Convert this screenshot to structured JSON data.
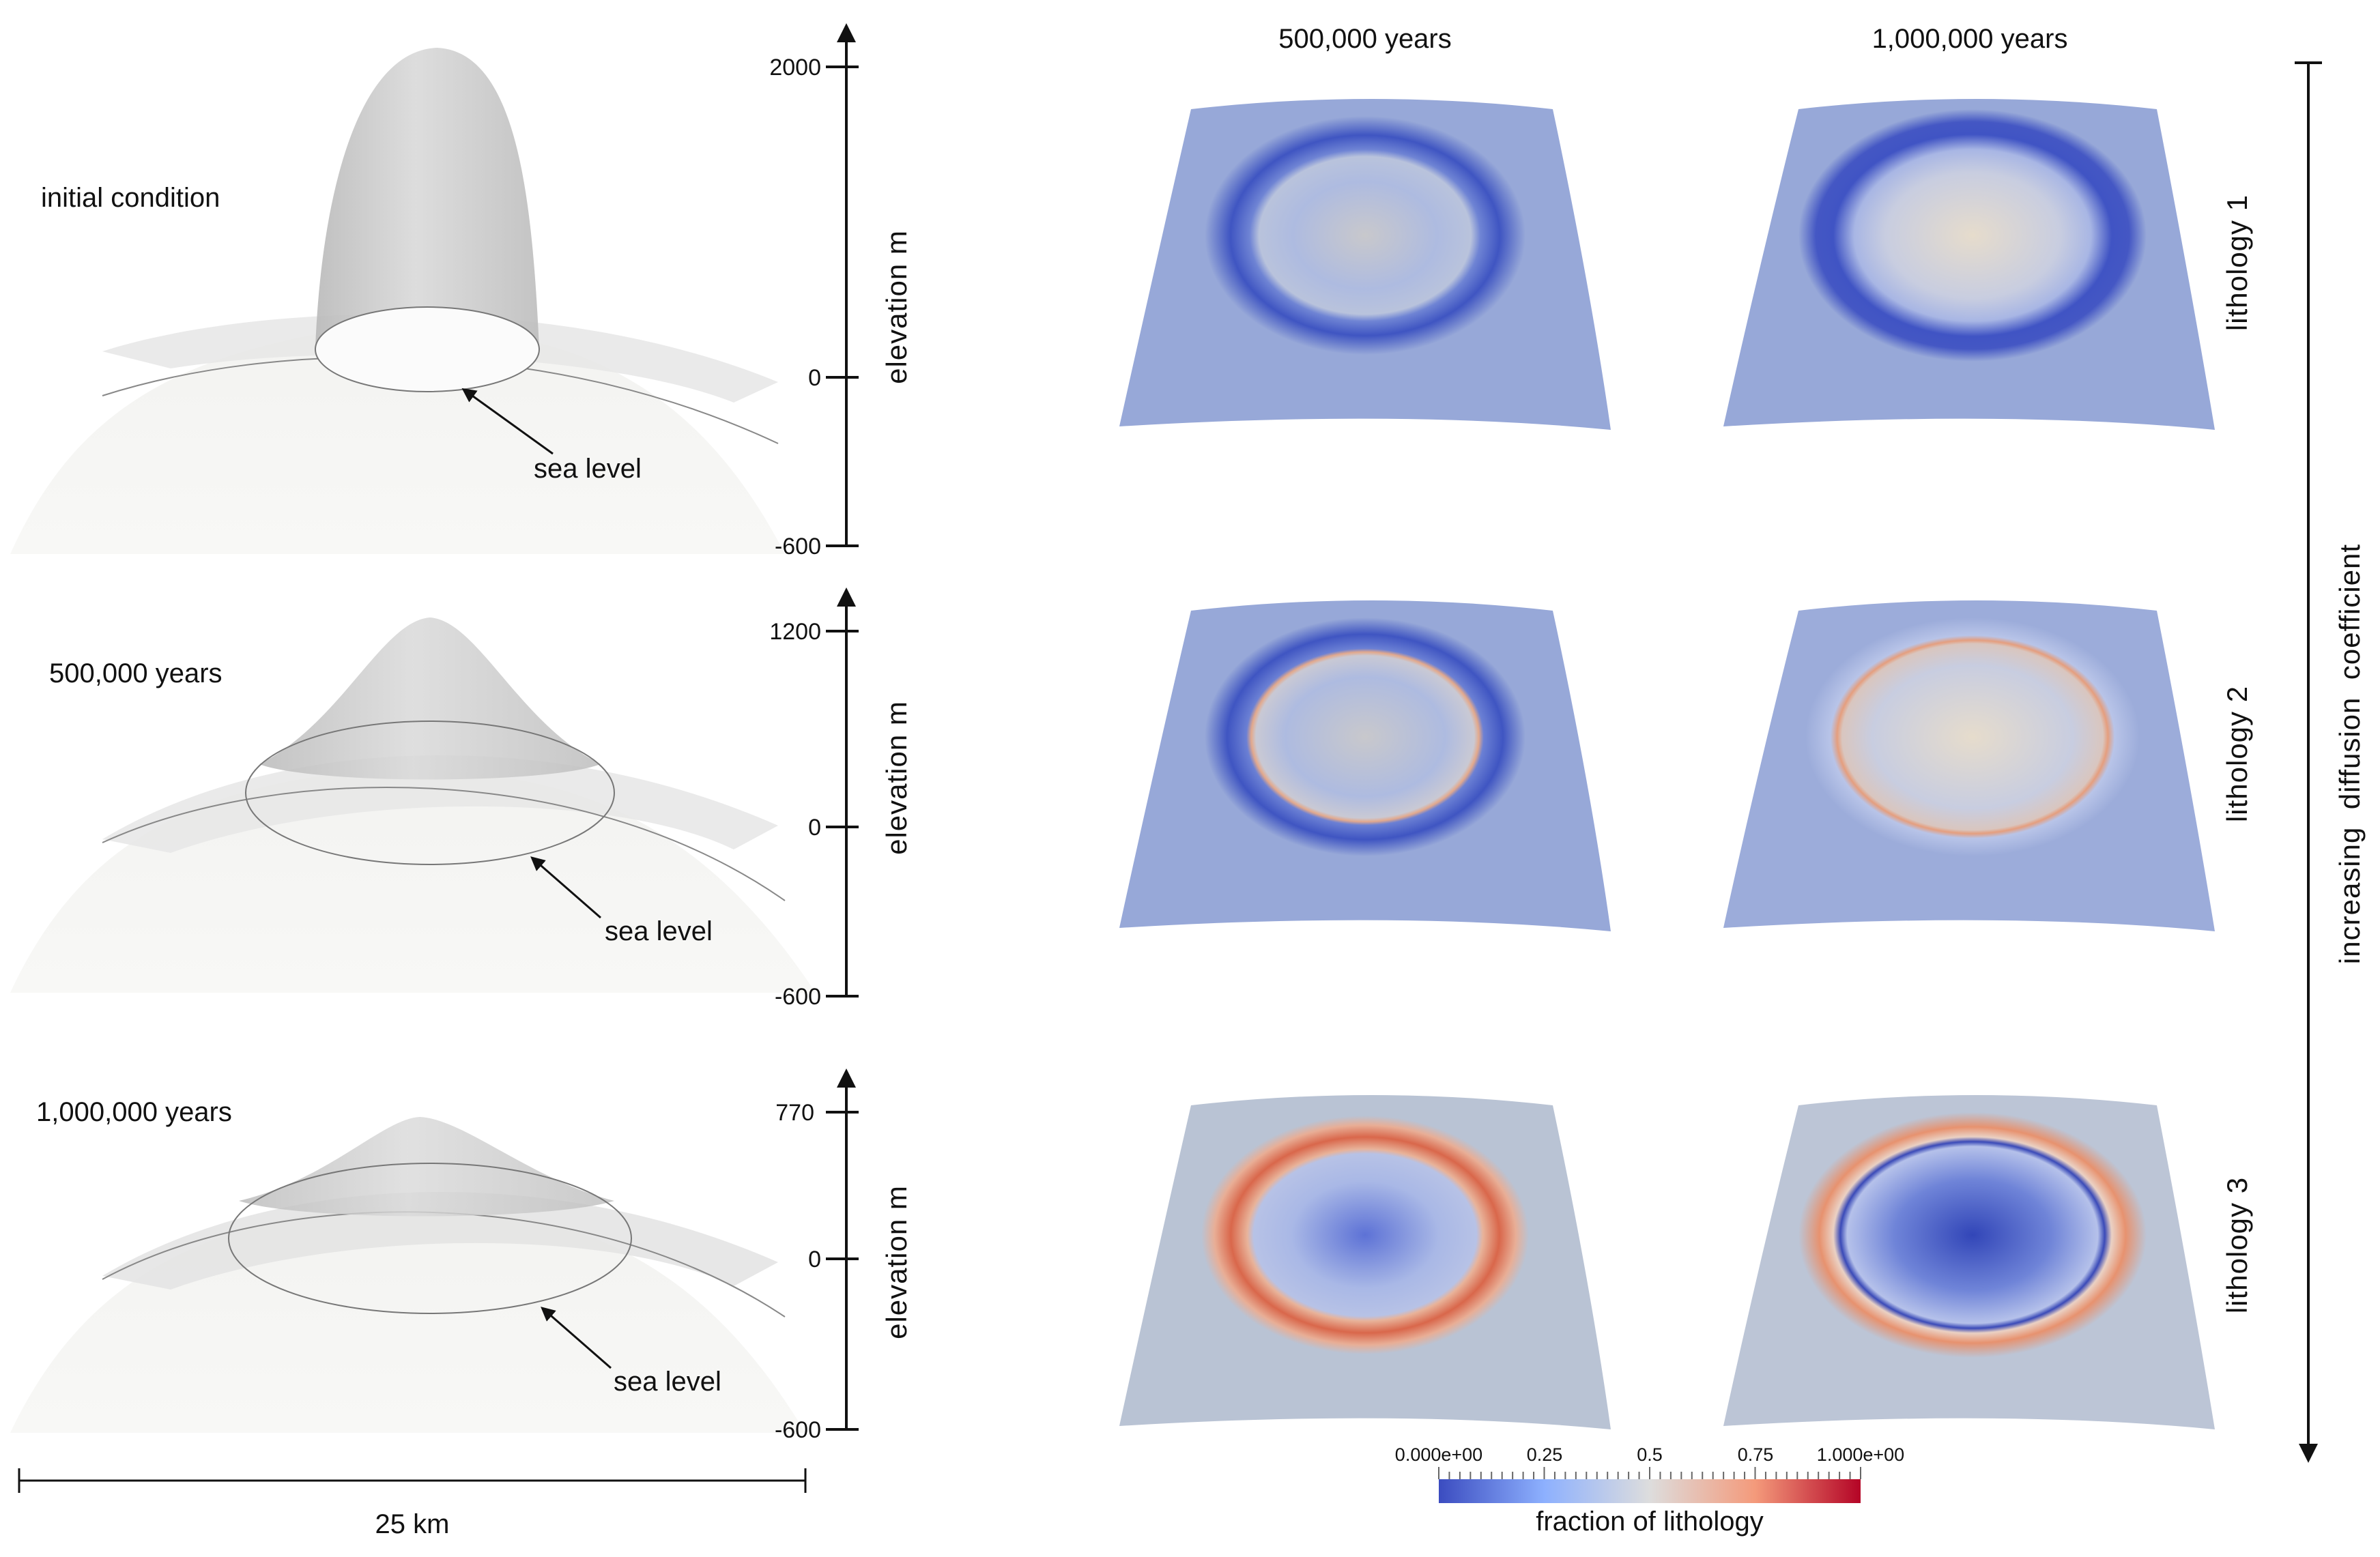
{
  "left_panels": [
    {
      "time_label": "initial condition",
      "sea_label": "sea level",
      "axis": {
        "label": "elevation m",
        "top": "2000",
        "zero": "0",
        "bottom": "-600"
      }
    },
    {
      "time_label": "500,000 years",
      "sea_label": "sea level",
      "axis": {
        "label": "elevation m",
        "top": "1200",
        "zero": "0",
        "bottom": "-600"
      }
    },
    {
      "time_label": "1,000,000 years",
      "sea_label": "sea level",
      "axis": {
        "label": "elevation m",
        "top": "770",
        "zero": "0",
        "bottom": "-600"
      }
    }
  ],
  "scale_bar": {
    "label": "25 km"
  },
  "columns": [
    "500,000 years",
    "1,000,000 years"
  ],
  "rows": [
    "lithology 1",
    "lithology 2",
    "lithology 3"
  ],
  "side_arrow_label": "increasing  diffusion  coefficient",
  "colorbar": {
    "title": "fraction of lithology",
    "ticks": [
      "0.000e+00",
      "0.25",
      "0.5",
      "0.75",
      "1.000e+00"
    ],
    "colors": [
      "#3b4cc0",
      "#dddddd",
      "#b40426"
    ]
  }
}
